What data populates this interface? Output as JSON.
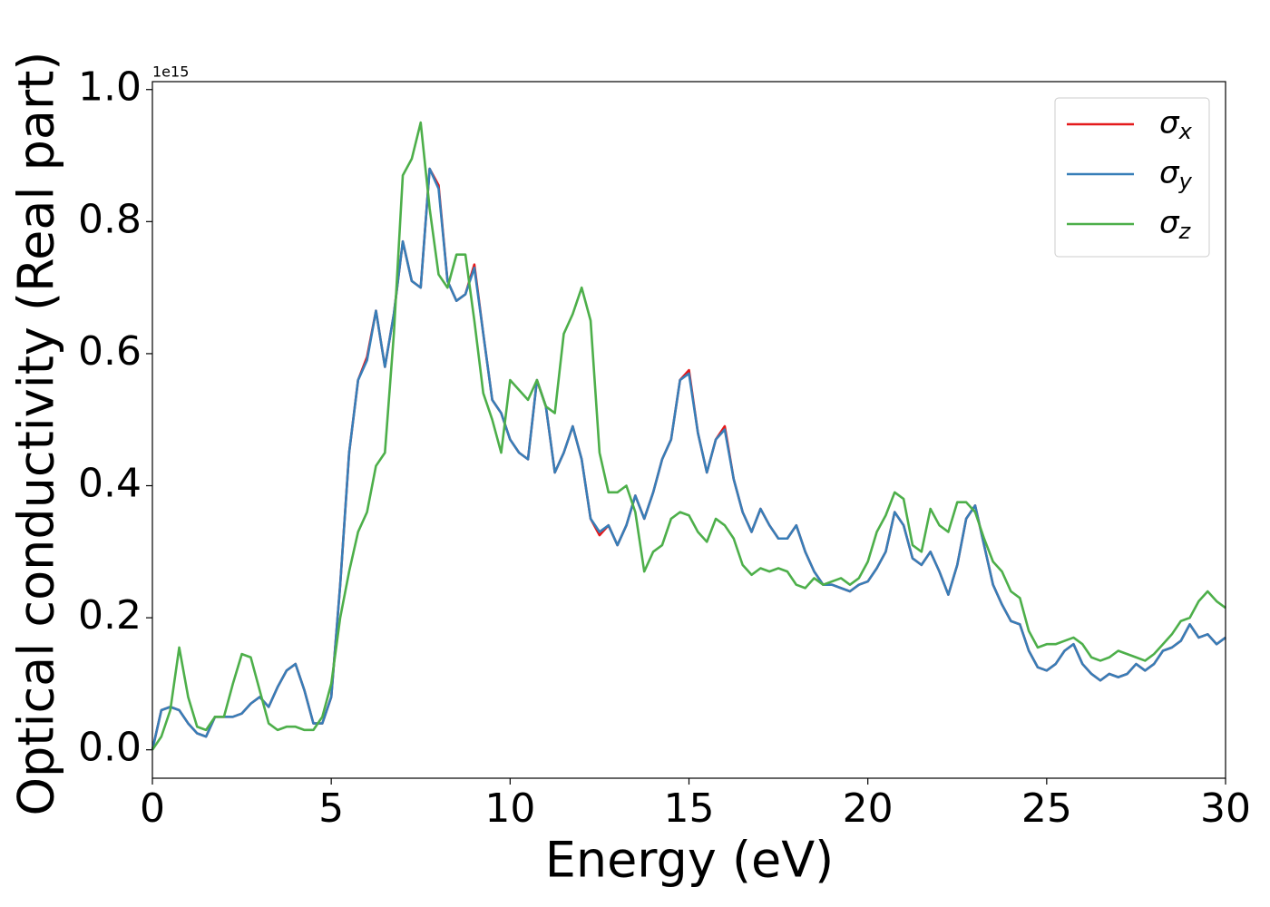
{
  "chart_data": {
    "type": "line",
    "xlabel": "Energy (eV)",
    "ylabel": "Optical conductivity (Real part)",
    "y_offset_label": "1e15",
    "xlim": [
      0,
      30
    ],
    "ylim": [
      -0.043,
      1.012
    ],
    "xticks": [
      0,
      5,
      10,
      15,
      20,
      25,
      30
    ],
    "yticks": [
      {
        "value": 0,
        "label": "0.0"
      },
      0.2,
      0.4,
      0.6,
      0.8,
      {
        "value": 1,
        "label": "1.0"
      }
    ],
    "legend": "upper right",
    "x": [
      0,
      0.25,
      0.5,
      0.75,
      1,
      1.25,
      1.5,
      1.75,
      2,
      2.25,
      2.5,
      2.75,
      3,
      3.25,
      3.5,
      3.75,
      4,
      4.25,
      4.5,
      4.75,
      5,
      5.25,
      5.5,
      5.75,
      6,
      6.25,
      6.5,
      6.75,
      7,
      7.25,
      7.5,
      7.75,
      8,
      8.25,
      8.5,
      8.75,
      9,
      9.25,
      9.5,
      9.75,
      10,
      10.25,
      10.5,
      10.75,
      11,
      11.25,
      11.5,
      11.75,
      12,
      12.25,
      12.5,
      12.75,
      13,
      13.25,
      13.5,
      13.75,
      14,
      14.25,
      14.5,
      14.75,
      15,
      15.25,
      15.5,
      15.75,
      16,
      16.25,
      16.5,
      16.75,
      17,
      17.25,
      17.5,
      17.75,
      18,
      18.25,
      18.5,
      18.75,
      19,
      19.25,
      19.5,
      19.75,
      20,
      20.25,
      20.5,
      20.75,
      21,
      21.25,
      21.5,
      21.75,
      22,
      22.25,
      22.5,
      22.75,
      23,
      23.25,
      23.5,
      23.75,
      24,
      24.25,
      24.5,
      24.75,
      25,
      25.25,
      25.5,
      25.75,
      26,
      26.25,
      26.5,
      26.75,
      27,
      27.25,
      27.5,
      27.75,
      28,
      28.25,
      28.5,
      28.75,
      29,
      29.25,
      29.5,
      29.75,
      30
    ],
    "series": [
      {
        "name": "σx",
        "color": "#e41a1c",
        "values": [
          0,
          0.06,
          0.065,
          0.06,
          0.04,
          0.025,
          0.02,
          0.05,
          0.05,
          0.05,
          0.055,
          0.07,
          0.08,
          0.065,
          0.095,
          0.12,
          0.13,
          0.09,
          0.04,
          0.04,
          0.08,
          0.25,
          0.45,
          0.56,
          0.595,
          0.665,
          0.58,
          0.66,
          0.77,
          0.71,
          0.7,
          0.88,
          0.855,
          0.71,
          0.68,
          0.69,
          0.735,
          0.63,
          0.53,
          0.51,
          0.47,
          0.45,
          0.44,
          0.56,
          0.52,
          0.42,
          0.45,
          0.49,
          0.44,
          0.35,
          0.325,
          0.34,
          0.31,
          0.34,
          0.385,
          0.35,
          0.39,
          0.44,
          0.47,
          0.56,
          0.575,
          0.48,
          0.42,
          0.47,
          0.49,
          0.41,
          0.36,
          0.33,
          0.365,
          0.34,
          0.32,
          0.32,
          0.34,
          0.3,
          0.27,
          0.25,
          0.25,
          0.245,
          0.24,
          0.25,
          0.255,
          0.275,
          0.3,
          0.36,
          0.34,
          0.29,
          0.28,
          0.3,
          0.27,
          0.235,
          0.28,
          0.35,
          0.37,
          0.31,
          0.25,
          0.22,
          0.195,
          0.19,
          0.15,
          0.125,
          0.12,
          0.13,
          0.15,
          0.16,
          0.13,
          0.115,
          0.105,
          0.115,
          0.11,
          0.115,
          0.13,
          0.12,
          0.13,
          0.15,
          0.155,
          0.165,
          0.19,
          0.17,
          0.175,
          0.16,
          0.17
        ]
      },
      {
        "name": "σy",
        "color": "#377eb8",
        "values": [
          0,
          0.06,
          0.065,
          0.06,
          0.04,
          0.025,
          0.02,
          0.05,
          0.05,
          0.05,
          0.055,
          0.07,
          0.08,
          0.065,
          0.095,
          0.12,
          0.13,
          0.09,
          0.04,
          0.04,
          0.08,
          0.25,
          0.45,
          0.56,
          0.59,
          0.665,
          0.58,
          0.66,
          0.77,
          0.71,
          0.7,
          0.88,
          0.85,
          0.71,
          0.68,
          0.69,
          0.73,
          0.63,
          0.53,
          0.51,
          0.47,
          0.45,
          0.44,
          0.56,
          0.52,
          0.42,
          0.45,
          0.49,
          0.44,
          0.35,
          0.33,
          0.34,
          0.31,
          0.34,
          0.385,
          0.35,
          0.39,
          0.44,
          0.47,
          0.56,
          0.57,
          0.48,
          0.42,
          0.47,
          0.485,
          0.41,
          0.36,
          0.33,
          0.365,
          0.34,
          0.32,
          0.32,
          0.34,
          0.3,
          0.27,
          0.25,
          0.25,
          0.245,
          0.24,
          0.25,
          0.255,
          0.275,
          0.3,
          0.36,
          0.34,
          0.29,
          0.28,
          0.3,
          0.27,
          0.235,
          0.28,
          0.35,
          0.37,
          0.31,
          0.25,
          0.22,
          0.195,
          0.19,
          0.15,
          0.125,
          0.12,
          0.13,
          0.15,
          0.16,
          0.13,
          0.115,
          0.105,
          0.115,
          0.11,
          0.115,
          0.13,
          0.12,
          0.13,
          0.15,
          0.155,
          0.165,
          0.19,
          0.17,
          0.175,
          0.16,
          0.17
        ]
      },
      {
        "name": "σz",
        "color": "#4daf4a",
        "values": [
          0,
          0.02,
          0.06,
          0.155,
          0.08,
          0.035,
          0.03,
          0.05,
          0.05,
          0.1,
          0.145,
          0.14,
          0.09,
          0.04,
          0.03,
          0.035,
          0.035,
          0.03,
          0.03,
          0.05,
          0.1,
          0.2,
          0.27,
          0.33,
          0.36,
          0.43,
          0.45,
          0.63,
          0.87,
          0.895,
          0.95,
          0.82,
          0.72,
          0.7,
          0.75,
          0.75,
          0.65,
          0.54,
          0.5,
          0.45,
          0.56,
          0.545,
          0.53,
          0.56,
          0.52,
          0.51,
          0.63,
          0.66,
          0.7,
          0.65,
          0.45,
          0.39,
          0.39,
          0.4,
          0.36,
          0.27,
          0.3,
          0.31,
          0.35,
          0.36,
          0.355,
          0.33,
          0.315,
          0.35,
          0.34,
          0.32,
          0.28,
          0.265,
          0.275,
          0.27,
          0.275,
          0.27,
          0.25,
          0.245,
          0.26,
          0.25,
          0.255,
          0.26,
          0.25,
          0.26,
          0.285,
          0.33,
          0.355,
          0.39,
          0.38,
          0.31,
          0.3,
          0.365,
          0.34,
          0.33,
          0.375,
          0.375,
          0.36,
          0.32,
          0.285,
          0.27,
          0.24,
          0.23,
          0.18,
          0.155,
          0.16,
          0.16,
          0.165,
          0.17,
          0.16,
          0.14,
          0.135,
          0.14,
          0.15,
          0.145,
          0.14,
          0.135,
          0.145,
          0.16,
          0.175,
          0.195,
          0.2,
          0.225,
          0.24,
          0.225,
          0.215
        ]
      }
    ]
  }
}
